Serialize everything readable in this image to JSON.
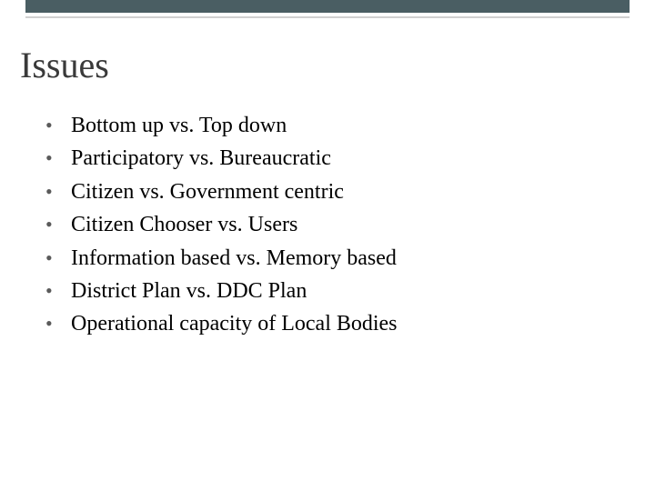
{
  "decor": {
    "bar_dark_color": "#4a5e63",
    "bar_light_color": "#d0d0d0",
    "background": "#ffffff"
  },
  "title": "Issues",
  "title_fontsize": 40,
  "title_color": "#3a3a3a",
  "bullets": {
    "items": [
      "Bottom up  vs. Top down",
      "Participatory  vs. Bureaucratic",
      "Citizen  vs. Government centric",
      "Citizen Chooser  vs. Users",
      "Information  based  vs. Memory based",
      "District   Plan vs.  DDC Plan",
      "Operational capacity of Local Bodies"
    ],
    "fontsize": 24,
    "color": "#000000",
    "bullet_color": "#5a5a5a"
  }
}
